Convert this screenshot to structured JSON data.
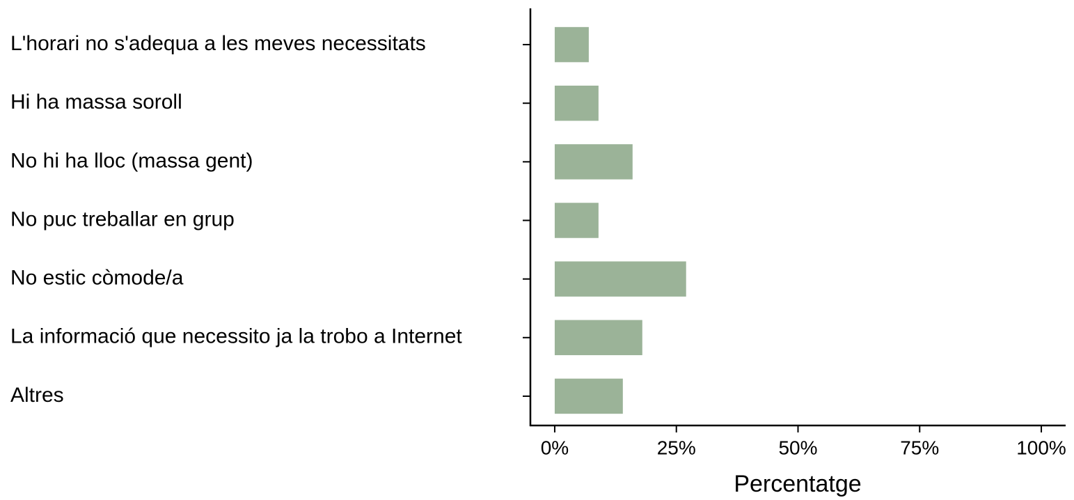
{
  "chart_data": {
    "type": "barh",
    "x_label": "Percentatge",
    "categories": [
      "L'horari no s'adequa a les meves necessitats",
      "Hi ha massa soroll",
      "No hi ha lloc (massa gent)",
      "No puc treballar en grup",
      "No estic còmode/a",
      "La informació que necessito ja la trobo a Internet",
      "Altres"
    ],
    "values": [
      7,
      9,
      16,
      9,
      27,
      18,
      14
    ],
    "color": "#9bb398",
    "xlim": [
      -5,
      105
    ],
    "xticks": [
      {
        "value": 0,
        "label": "0%"
      },
      {
        "value": 25,
        "label": "25%"
      },
      {
        "value": 50,
        "label": "50%"
      },
      {
        "value": 75,
        "label": "75%"
      },
      {
        "value": 100,
        "label": "100%"
      }
    ],
    "grid": false
  }
}
